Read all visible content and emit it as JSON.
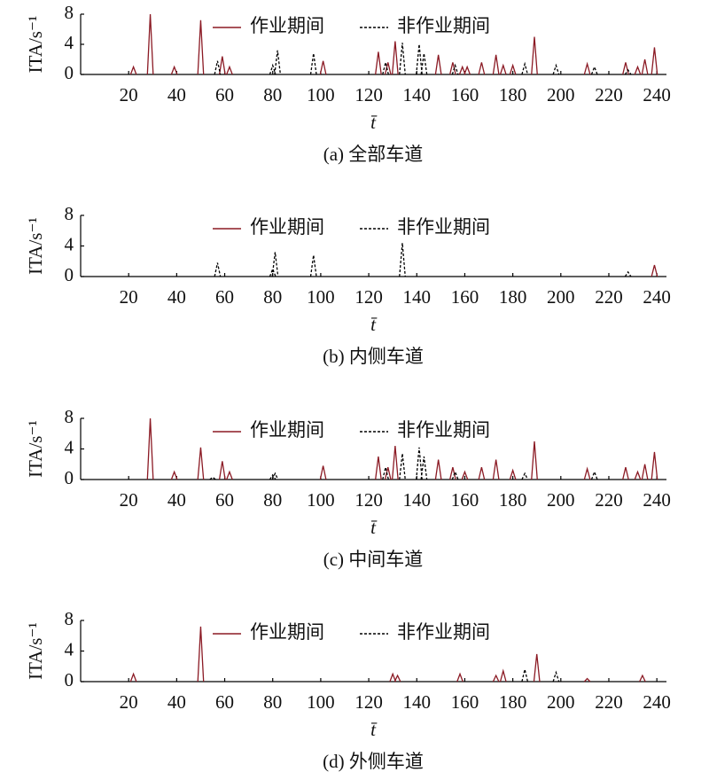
{
  "chart_data": [
    {
      "type": "line",
      "ylabel": "ITA/s⁻¹",
      "xlabel": "t̄",
      "caption": "(a) 全部车道",
      "xlim": [
        0,
        244
      ],
      "ylim": [
        0,
        8
      ],
      "xticks": [
        20,
        40,
        60,
        80,
        100,
        120,
        140,
        160,
        180,
        200,
        220,
        240
      ],
      "yticks": [
        0,
        4,
        8
      ],
      "legend": "top",
      "series": [
        {
          "name": "作业期间",
          "color": "#8b1a24",
          "linestyle": "solid",
          "x": [
            22,
            29,
            39,
            50,
            59,
            62,
            101,
            124,
            128,
            131,
            149,
            155,
            159,
            161,
            167,
            173,
            176,
            180,
            189,
            211,
            227,
            232,
            235,
            239
          ],
          "values": [
            1,
            8,
            1,
            7.2,
            2.4,
            1,
            1.8,
            3,
            1.6,
            4.4,
            2.6,
            1.6,
            1,
            1,
            1.6,
            2.6,
            1.2,
            1.2,
            5,
            1.4,
            1.6,
            1,
            2,
            3.6
          ]
        },
        {
          "name": "非作业期间",
          "color": "#000000",
          "linestyle": "dashed",
          "x": [
            57,
            80,
            82,
            97,
            127,
            134,
            141,
            143,
            156,
            185,
            198,
            214,
            228
          ],
          "values": [
            1.8,
            1.2,
            3.2,
            2.8,
            1.6,
            4.2,
            4,
            2.8,
            1.2,
            1.4,
            1.2,
            1,
            0.6
          ]
        }
      ]
    },
    {
      "type": "line",
      "ylabel": "ITA/s⁻¹",
      "xlabel": "t̄",
      "caption": "(b) 内侧车道",
      "xlim": [
        0,
        244
      ],
      "ylim": [
        0,
        8
      ],
      "xticks": [
        20,
        40,
        60,
        80,
        100,
        120,
        140,
        160,
        180,
        200,
        220,
        240
      ],
      "yticks": [
        0,
        4,
        8
      ],
      "legend": "top",
      "series": [
        {
          "name": "作业期间",
          "color": "#8b1a24",
          "linestyle": "solid",
          "x": [
            239
          ],
          "values": [
            1.5
          ]
        },
        {
          "name": "非作业期间",
          "color": "#000000",
          "linestyle": "dashed",
          "x": [
            57,
            80,
            81,
            97,
            134,
            228
          ],
          "values": [
            1.8,
            1,
            3.2,
            2.8,
            4.4,
            0.6
          ]
        }
      ]
    },
    {
      "type": "line",
      "ylabel": "ITA/s⁻¹",
      "xlabel": "t̄",
      "caption": "(c) 中间车道",
      "xlim": [
        0,
        244
      ],
      "ylim": [
        0,
        8
      ],
      "xticks": [
        20,
        40,
        60,
        80,
        100,
        120,
        140,
        160,
        180,
        200,
        220,
        240
      ],
      "yticks": [
        0,
        4,
        8
      ],
      "legend": "top",
      "series": [
        {
          "name": "作业期间",
          "color": "#8b1a24",
          "linestyle": "solid",
          "x": [
            29,
            39,
            50,
            59,
            62,
            101,
            124,
            128,
            131,
            149,
            155,
            160,
            167,
            173,
            180,
            189,
            211,
            227,
            232,
            235,
            239
          ],
          "values": [
            8,
            1,
            4.2,
            2.4,
            1,
            1.8,
            3,
            1.6,
            4.4,
            2.6,
            1.6,
            1,
            1.6,
            2.6,
            1.2,
            5,
            1.4,
            1.6,
            1,
            2,
            3.6
          ]
        },
        {
          "name": "非作业期间",
          "color": "#000000",
          "linestyle": "dashed",
          "x": [
            55,
            80,
            81,
            127,
            134,
            141,
            143,
            156,
            185,
            214
          ],
          "values": [
            0.3,
            0.6,
            0.8,
            1.6,
            3.4,
            4.2,
            3,
            1,
            0.8,
            1
          ]
        }
      ]
    },
    {
      "type": "line",
      "ylabel": "ITA/s⁻¹",
      "xlabel": "t̄",
      "caption": "(d) 外侧车道",
      "xlim": [
        0,
        244
      ],
      "ylim": [
        0,
        8
      ],
      "xticks": [
        20,
        40,
        60,
        80,
        100,
        120,
        140,
        160,
        180,
        200,
        220,
        240
      ],
      "yticks": [
        0,
        4,
        8
      ],
      "legend": "top",
      "series": [
        {
          "name": "作业期间",
          "color": "#8b1a24",
          "linestyle": "solid",
          "x": [
            22,
            50,
            130,
            132,
            158,
            173,
            176,
            190,
            211,
            234
          ],
          "values": [
            1,
            7.2,
            1,
            0.8,
            1,
            0.8,
            1.4,
            3.6,
            0.4,
            0.8
          ]
        },
        {
          "name": "非作业期间",
          "color": "#000000",
          "linestyle": "dashed",
          "x": [
            185,
            198
          ],
          "values": [
            1.6,
            1.2
          ]
        }
      ]
    }
  ]
}
